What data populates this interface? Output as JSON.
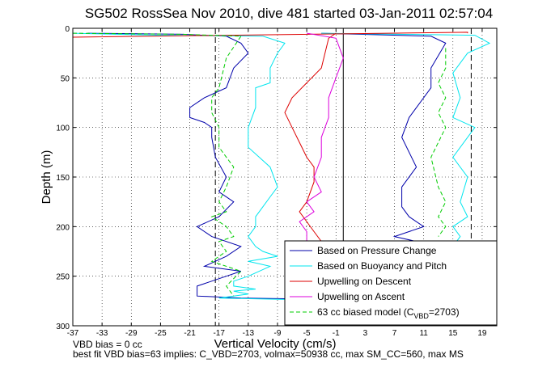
{
  "chart_data": {
    "type": "line",
    "title": "SG502 RossSea Nov 2010, dive 481 started 03-Jan-2011 02:57:04",
    "xlabel": "Vertical Velocity (cm/s)",
    "ylabel": "Depth (m)",
    "xlim": [
      -37,
      21
    ],
    "ylim": [
      300,
      0
    ],
    "y_reversed": true,
    "grid": true,
    "legend_position": "bottom-right",
    "x_ticks": [
      -37,
      -33,
      -29,
      -25,
      -21,
      -17,
      -13,
      -9,
      -5,
      -1,
      3,
      7,
      11,
      15,
      19
    ],
    "y_ticks": [
      0,
      50,
      100,
      150,
      200,
      250,
      300
    ],
    "reference_lines": [
      {
        "x": 0,
        "style": "solid",
        "color": "#000000"
      },
      {
        "x": -17.5,
        "style": "dashed",
        "color": "#000000"
      },
      {
        "x": 17.5,
        "style": "dashed",
        "color": "#000000"
      }
    ],
    "series": [
      {
        "name": "Based on Pressure Change",
        "color": "#0000aa",
        "style": "solid",
        "segments": [
          {
            "x": [
              -35,
              -22,
              -16,
              -14,
              -13,
              -15,
              -16,
              -19,
              -21,
              -21,
              -19,
              -18,
              -18,
              -17.5,
              -16,
              -17,
              -15,
              -17,
              -20,
              -18,
              -14,
              -16,
              -19,
              -14,
              -16,
              -20,
              -20,
              -14,
              -5,
              -3
            ],
            "y": [
              5,
              6,
              8,
              15,
              25,
              40,
              60,
              70,
              80,
              90,
              95,
              100,
              110,
              130,
              150,
              165,
              175,
              190,
              200,
              210,
              220,
              230,
              240,
              245,
              250,
              260,
              270,
              272,
              273,
              274
            ]
          },
          {
            "x": [
              -3,
              12,
              14,
              12,
              12,
              9,
              8,
              10,
              8,
              8,
              9,
              11,
              7,
              10,
              12,
              14,
              15
            ],
            "y": [
              5,
              8,
              15,
              40,
              60,
              90,
              110,
              140,
              160,
              180,
              190,
              200,
              210,
              215,
              220,
              223,
              225
            ]
          }
        ]
      },
      {
        "name": "Based on Buoyancy and Pitch",
        "color": "#00e5ee",
        "style": "solid",
        "segments": [
          {
            "x": [
              -37,
              -25,
              -11,
              -8,
              -9,
              -10,
              -10,
              -12,
              -12,
              -13,
              -13,
              -10,
              -9,
              -10,
              -11,
              -12,
              -12,
              -13,
              -12,
              -11,
              -9,
              -13,
              -10,
              -13,
              -15,
              -15,
              -12,
              -15,
              -13,
              -15,
              -17,
              -4,
              -3
            ],
            "y": [
              5,
              7,
              8,
              15,
              25,
              40,
              55,
              60,
              80,
              100,
              120,
              140,
              160,
              170,
              180,
              190,
              200,
              210,
              220,
              225,
              230,
              235,
              240,
              250,
              255,
              260,
              263,
              265,
              268,
              270,
              272,
              274,
              275
            ]
          },
          {
            "x": [
              -3,
              18,
              20,
              17,
              15,
              16,
              15,
              18,
              15,
              17,
              16,
              17,
              15,
              16,
              15
            ],
            "y": [
              5,
              7,
              15,
              25,
              45,
              70,
              90,
              100,
              130,
              150,
              175,
              190,
              200,
              210,
              220
            ]
          }
        ]
      },
      {
        "name": "Upwelling on Descent",
        "color": "#dd0000",
        "style": "solid",
        "segments": [
          {
            "x": [
              -37,
              17,
              17
            ],
            "y": [
              9,
              4,
              5
            ]
          },
          {
            "x": [
              -1,
              -2,
              -3,
              -5,
              -7,
              -8,
              -7,
              -6,
              -5,
              -4,
              -4,
              -5,
              -6,
              -5,
              -4,
              -3,
              -5,
              -6,
              -5
            ],
            "y": [
              5,
              10,
              40,
              55,
              70,
              85,
              100,
              115,
              130,
              140,
              155,
              175,
              185,
              195,
              205,
              215,
              225,
              235,
              240
            ]
          }
        ]
      },
      {
        "name": "Upwelling on Ascent",
        "color": "#dd00dd",
        "style": "solid",
        "segments": [
          {
            "x": [
              -5,
              -1,
              0,
              -1,
              -2,
              -2,
              -3,
              -3,
              -4,
              -3,
              -5,
              -4,
              -6,
              -5,
              -5,
              -6,
              -5
            ],
            "y": [
              5,
              10,
              30,
              50,
              70,
              90,
              110,
              130,
              150,
              165,
              175,
              185,
              195,
              205,
              215,
              225,
              235
            ]
          }
        ]
      },
      {
        "name": "63 cc biased model (CVBD=2703)",
        "color": "#00cc00",
        "style": "dashed",
        "segments": [
          {
            "x": [
              -37,
              -22,
              -14,
              -16,
              -17,
              -18,
              -18,
              -17,
              -17,
              -15,
              -16,
              -17,
              -16,
              -18,
              -16,
              -15,
              -17,
              -16,
              -18,
              -14,
              -16,
              -15
            ],
            "y": [
              5,
              6,
              8,
              30,
              60,
              70,
              85,
              100,
              120,
              140,
              160,
              175,
              185,
              190,
              200,
              210,
              215,
              225,
              235,
              245,
              260,
              270
            ]
          },
          {
            "x": [
              14,
              14,
              13,
              14,
              13,
              14,
              12,
              13,
              14,
              13,
              14,
              13
            ],
            "y": [
              20,
              40,
              55,
              70,
              85,
              100,
              130,
              160,
              175,
              190,
              200,
              210
            ]
          }
        ]
      }
    ],
    "legend_labels": [
      {
        "main": "Based on Pressure Change",
        "sub": "",
        "tail": ""
      },
      {
        "main": "Based on Buoyancy and Pitch",
        "sub": "",
        "tail": ""
      },
      {
        "main": "Upwelling on Descent",
        "sub": "",
        "tail": ""
      },
      {
        "main": "Upwelling on Ascent",
        "sub": "",
        "tail": ""
      },
      {
        "main": "63 cc biased model (C",
        "sub": "VBD",
        "tail": "=2703)"
      }
    ]
  },
  "footer": {
    "line1": "VBD bias = 0 cc",
    "line2": "best fit VBD bias=63 implies: C_VBD=2703, volmax=50938 cc, max SM_CC=560, max MS"
  }
}
